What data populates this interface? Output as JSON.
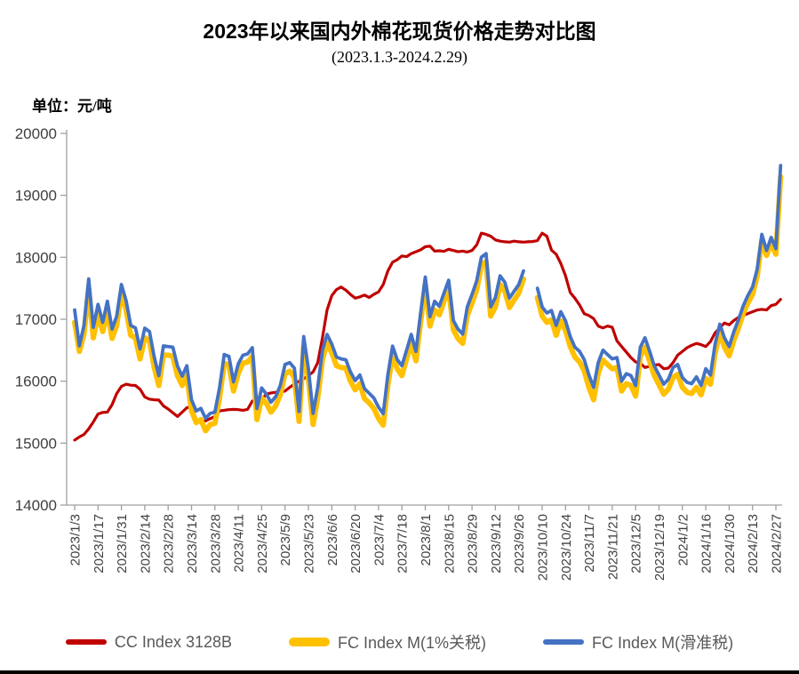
{
  "title": "2023年以来国内外棉花现货价格走势对比图",
  "subtitle": "(2023.1.3-2024.2.29)",
  "unit_label": "单位：元/吨",
  "chart_data": {
    "type": "line",
    "title": "2023年以来国内外棉花现货价格走势对比图",
    "subtitle": "(2023.1.3-2024.2.29)",
    "ylabel": "元/吨",
    "ylim": [
      14000,
      20000
    ],
    "y_tick_step": 1000,
    "y_tick_labels": [
      "14000",
      "15000",
      "16000",
      "17000",
      "18000",
      "19000",
      "20000"
    ],
    "grid": false,
    "legend_position": "bottom",
    "x_tick_labels": [
      "2023/1/3",
      "2023/1/17",
      "2023/1/31",
      "2023/2/14",
      "2023/2/28",
      "2023/3/14",
      "2023/3/28",
      "2023/4/11",
      "2023/4/25",
      "2023/5/9",
      "2023/5/23",
      "2023/6/6",
      "2023/6/20",
      "2023/7/4",
      "2023/7/18",
      "2023/8/1",
      "2023/8/15",
      "2023/8/29",
      "2023/9/12",
      "2023/9/26",
      "2023/10/10",
      "2023/10/24",
      "2023/11/7",
      "2023/11/21",
      "2023/12/5",
      "2023/12/19",
      "2024/1/2",
      "2024/1/16",
      "2024/1/30",
      "2024/2/13",
      "2024/2/27"
    ],
    "points_per_tick_interval": 5,
    "series": [
      {
        "name": "CC Index 3128B",
        "color": "#C00000",
        "width": 3.2,
        "values": [
          15050,
          15100,
          15140,
          15230,
          15340,
          15470,
          15495,
          15500,
          15620,
          15800,
          15915,
          15950,
          15935,
          15930,
          15870,
          15745,
          15710,
          15700,
          15695,
          15600,
          15550,
          15490,
          15430,
          15500,
          15570,
          15590,
          15380,
          15335,
          15360,
          15395,
          15430,
          15520,
          15530,
          15540,
          15545,
          15540,
          15530,
          15545,
          15680,
          15700,
          15705,
          15790,
          15810,
          15820,
          15830,
          15840,
          15900,
          15950,
          16000,
          16040,
          16090,
          16150,
          16300,
          16700,
          17150,
          17380,
          17480,
          17520,
          17470,
          17400,
          17340,
          17360,
          17390,
          17350,
          17400,
          17440,
          17560,
          17780,
          17920,
          17960,
          18020,
          18010,
          18060,
          18090,
          18120,
          18170,
          18180,
          18100,
          18105,
          18095,
          18130,
          18110,
          18090,
          18100,
          18085,
          18110,
          18200,
          18390,
          18370,
          18340,
          18280,
          18260,
          18250,
          18245,
          18260,
          18250,
          18245,
          18250,
          18255,
          18270,
          18390,
          18340,
          18115,
          18050,
          17900,
          17700,
          17430,
          17340,
          17230,
          17090,
          17060,
          17010,
          16890,
          16860,
          16890,
          16870,
          16650,
          16560,
          16470,
          16380,
          16310,
          16290,
          16220,
          16240,
          16260,
          16270,
          16200,
          16210,
          16300,
          16420,
          16480,
          16540,
          16580,
          16610,
          16590,
          16560,
          16640,
          16780,
          16860,
          16940,
          16910,
          16980,
          17030,
          17060,
          17090,
          17120,
          17150,
          17160,
          17150,
          17220,
          17240,
          17320
        ]
      },
      {
        "name": "FC Index M(1%关税)",
        "color": "#FFC000",
        "width": 6,
        "values": [
          16950,
          16480,
          16760,
          17500,
          16700,
          17080,
          16800,
          17130,
          16690,
          16900,
          17430,
          17150,
          16740,
          16700,
          16360,
          16700,
          16650,
          16230,
          15930,
          16420,
          16420,
          16400,
          16090,
          15930,
          16090,
          15520,
          15330,
          15380,
          15200,
          15300,
          15320,
          15740,
          16290,
          16260,
          15840,
          16130,
          16290,
          16310,
          16400,
          15380,
          15730,
          15640,
          15500,
          15600,
          15780,
          16120,
          16160,
          16060,
          15350,
          16560,
          16040,
          15300,
          15730,
          16350,
          16620,
          16460,
          16250,
          16220,
          16210,
          16000,
          15860,
          15960,
          15720,
          15650,
          15560,
          15400,
          15290,
          15940,
          16420,
          16200,
          16090,
          16360,
          16620,
          16330,
          16950,
          17560,
          16890,
          17150,
          17070,
          17290,
          17500,
          16830,
          16690,
          16610,
          17060,
          17260,
          17480,
          17870,
          17930,
          17050,
          17200,
          17560,
          17460,
          17190,
          17310,
          17420,
          17650,
          null,
          null,
          17350,
          17050,
          16950,
          16990,
          16740,
          16970,
          16820,
          16560,
          16390,
          16310,
          16170,
          15900,
          15700,
          16130,
          16340,
          16270,
          16200,
          16220,
          15840,
          15960,
          15930,
          15760,
          16400,
          16550,
          16320,
          16090,
          15940,
          15790,
          15870,
          16060,
          16110,
          15900,
          15820,
          15800,
          15900,
          15780,
          16040,
          15950,
          16450,
          16780,
          16550,
          16410,
          16660,
          16860,
          17090,
          17260,
          17400,
          17700,
          18280,
          18030,
          18230,
          18050,
          19300
        ]
      },
      {
        "name": "FC Index M(滑准税)",
        "color": "#4472C4",
        "width": 3.8,
        "values": [
          17150,
          16570,
          16900,
          17650,
          16870,
          17240,
          16950,
          17290,
          16840,
          17050,
          17560,
          17300,
          16900,
          16860,
          16520,
          16855,
          16800,
          16400,
          16090,
          16570,
          16560,
          16550,
          16245,
          16080,
          16250,
          15700,
          15520,
          15560,
          15400,
          15480,
          15500,
          15900,
          16430,
          16400,
          15990,
          16280,
          16420,
          16440,
          16540,
          15560,
          15890,
          15790,
          15660,
          15750,
          15930,
          16270,
          16300,
          16210,
          15510,
          16720,
          16200,
          15480,
          15900,
          16500,
          16755,
          16600,
          16390,
          16360,
          16345,
          16150,
          16010,
          16100,
          15880,
          15805,
          15730,
          15580,
          15475,
          16100,
          16565,
          16350,
          16250,
          16500,
          16755,
          16480,
          17090,
          17680,
          17040,
          17290,
          17210,
          17420,
          17630,
          16980,
          16840,
          16760,
          17200,
          17400,
          17620,
          18000,
          18060,
          17200,
          17350,
          17700,
          17600,
          17340,
          17450,
          17560,
          17780,
          null,
          null,
          17500,
          17200,
          17100,
          17140,
          16900,
          17120,
          16975,
          16720,
          16550,
          16480,
          16350,
          16100,
          15900,
          16300,
          16500,
          16430,
          16360,
          16380,
          16000,
          16120,
          16090,
          15930,
          16550,
          16700,
          16480,
          16245,
          16100,
          15950,
          16030,
          16220,
          16270,
          16060,
          15980,
          15960,
          16070,
          15930,
          16200,
          16100,
          16600,
          16920,
          16700,
          16560,
          16800,
          16990,
          17215,
          17380,
          17520,
          17810,
          18370,
          18110,
          18320,
          18140,
          19480
        ]
      }
    ]
  }
}
